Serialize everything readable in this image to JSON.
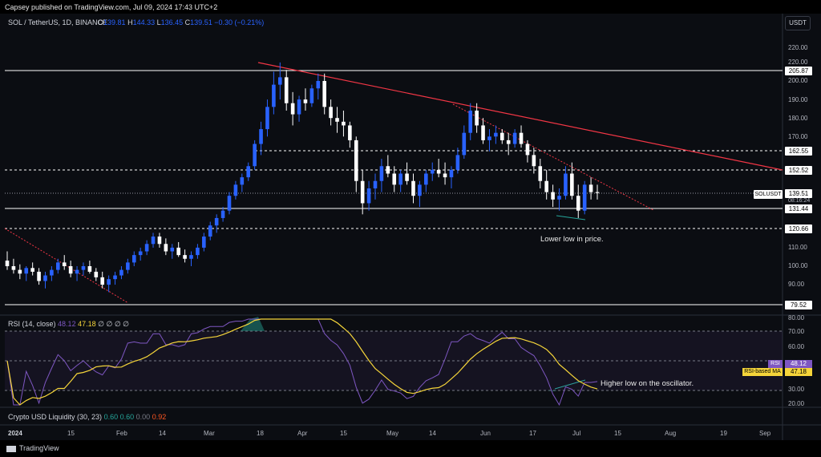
{
  "publish_line": "Capsey published on TradingView.com, Jul 09, 2024 17:43 UTC+2",
  "ticker": "SOL / TetherUS, 1D, BINANCE",
  "ohlc": {
    "o_label": "O",
    "o": "139.81",
    "h_label": "H",
    "h": "144.33",
    "l_label": "L",
    "l": "136.45",
    "c_label": "C",
    "c": "139.51",
    "change": "−0.30 (−0.21%)"
  },
  "currency": "USDT",
  "price_axis": [
    "220.00",
    "210.00",
    "200.00",
    "190.00",
    "180.00",
    "170.00",
    "160.00",
    "150.00",
    "140.00",
    "130.00",
    "120.00",
    "110.00",
    "100.00",
    "90.00",
    "80.00"
  ],
  "price_tags": [
    "205.87",
    "162.55",
    "152.52",
    "139.51",
    "131.44",
    "120.66",
    "79.52"
  ],
  "symbol_tag": "SOLUSDT",
  "bar_timer": "08:16:24",
  "notes": {
    "price": "Lower low in price.",
    "osc": "Higher low on the oscillator."
  },
  "rsi": {
    "name": "RSI (14, close)",
    "value": "48.12",
    "ma_value": "47.18",
    "extra": "∅ ∅ ∅ ∅",
    "axis": [
      "80.00",
      "70.00",
      "60.00",
      "50.00",
      "40.00",
      "30.00",
      "20.00"
    ],
    "tag_label": "RSI",
    "ma_tag_label": "RSI-based MA",
    "line_color": "#7e57c2",
    "ma_color": "#f5d53a"
  },
  "liquidity": {
    "name": "Crypto USD Liquidity (30, 23)",
    "v1": "0.60",
    "v2": "0.60",
    "v3": "0.00",
    "v4": "0.92"
  },
  "time_axis": [
    "2024",
    "15",
    "Feb",
    "14",
    "Mar",
    "18",
    "Apr",
    "15",
    "May",
    "14",
    "Jun",
    "17",
    "Jul",
    "15",
    "Aug",
    "19",
    "Sep"
  ],
  "footer_brand": "TradingView",
  "colors": {
    "up": "#2962ff",
    "down": "#ffffff",
    "trendline": "#f23645",
    "background": "#0b0d12"
  },
  "chart_data": {
    "type": "candlestick",
    "series": [
      {
        "name": "SOLUSDT",
        "values": [
          [
            103,
            108,
            98,
            100
          ],
          [
            100,
            104,
            96,
            98
          ],
          [
            98,
            101,
            93,
            96
          ],
          [
            96,
            100,
            92,
            99
          ],
          [
            99,
            102,
            95,
            97
          ],
          [
            97,
            99,
            90,
            92
          ],
          [
            92,
            97,
            88,
            95
          ],
          [
            95,
            100,
            92,
            98
          ],
          [
            98,
            104,
            96,
            102
          ],
          [
            102,
            106,
            98,
            100
          ],
          [
            100,
            103,
            94,
            96
          ],
          [
            96,
            100,
            92,
            98
          ],
          [
            98,
            102,
            95,
            100
          ],
          [
            100,
            103,
            96,
            97
          ],
          [
            97,
            99,
            92,
            94
          ],
          [
            94,
            97,
            88,
            90
          ],
          [
            90,
            95,
            86,
            93
          ],
          [
            93,
            97,
            90,
            95
          ],
          [
            95,
            100,
            93,
            98
          ],
          [
            98,
            104,
            96,
            102
          ],
          [
            102,
            108,
            100,
            106
          ],
          [
            106,
            110,
            103,
            108
          ],
          [
            108,
            114,
            106,
            112
          ],
          [
            112,
            118,
            110,
            116
          ],
          [
            116,
            118,
            110,
            112
          ],
          [
            112,
            115,
            106,
            108
          ],
          [
            108,
            112,
            104,
            110
          ],
          [
            110,
            113,
            105,
            106
          ],
          [
            106,
            109,
            102,
            104
          ],
          [
            104,
            108,
            100,
            106
          ],
          [
            106,
            112,
            104,
            110
          ],
          [
            110,
            118,
            108,
            116
          ],
          [
            116,
            124,
            114,
            122
          ],
          [
            122,
            128,
            118,
            126
          ],
          [
            126,
            132,
            124,
            130
          ],
          [
            130,
            140,
            128,
            138
          ],
          [
            138,
            146,
            136,
            144
          ],
          [
            144,
            150,
            140,
            148
          ],
          [
            148,
            156,
            146,
            154
          ],
          [
            154,
            168,
            152,
            166
          ],
          [
            166,
            178,
            160,
            174
          ],
          [
            174,
            190,
            170,
            186
          ],
          [
            186,
            205,
            182,
            198
          ],
          [
            198,
            210,
            190,
            202
          ],
          [
            202,
            206,
            184,
            188
          ],
          [
            188,
            194,
            176,
            182
          ],
          [
            182,
            192,
            178,
            190
          ],
          [
            190,
            196,
            184,
            188
          ],
          [
            188,
            198,
            186,
            196
          ],
          [
            196,
            204,
            190,
            200
          ],
          [
            200,
            204,
            182,
            186
          ],
          [
            186,
            190,
            176,
            180
          ],
          [
            180,
            186,
            172,
            178
          ],
          [
            178,
            184,
            170,
            176
          ],
          [
            176,
            178,
            164,
            168
          ],
          [
            168,
            170,
            140,
            146
          ],
          [
            146,
            152,
            128,
            134
          ],
          [
            134,
            146,
            130,
            142
          ],
          [
            142,
            150,
            136,
            146
          ],
          [
            146,
            158,
            140,
            154
          ],
          [
            154,
            160,
            148,
            150
          ],
          [
            150,
            154,
            140,
            144
          ],
          [
            144,
            152,
            140,
            150
          ],
          [
            150,
            156,
            144,
            146
          ],
          [
            146,
            150,
            134,
            138
          ],
          [
            138,
            146,
            132,
            144
          ],
          [
            144,
            152,
            140,
            150
          ],
          [
            150,
            156,
            146,
            152
          ],
          [
            152,
            158,
            148,
            150
          ],
          [
            150,
            156,
            144,
            148
          ],
          [
            148,
            154,
            142,
            152
          ],
          [
            152,
            164,
            150,
            160
          ],
          [
            160,
            176,
            158,
            172
          ],
          [
            172,
            188,
            168,
            184
          ],
          [
            184,
            188,
            172,
            176
          ],
          [
            176,
            180,
            166,
            168
          ],
          [
            168,
            174,
            162,
            170
          ],
          [
            170,
            176,
            166,
            172
          ],
          [
            172,
            174,
            166,
            168
          ],
          [
            168,
            172,
            160,
            166
          ],
          [
            166,
            174,
            164,
            172
          ],
          [
            172,
            176,
            164,
            166
          ],
          [
            166,
            168,
            156,
            160
          ],
          [
            160,
            164,
            150,
            154
          ],
          [
            154,
            158,
            142,
            146
          ],
          [
            146,
            152,
            136,
            140
          ],
          [
            140,
            144,
            132,
            136
          ],
          [
            136,
            142,
            130,
            138
          ],
          [
            138,
            154,
            136,
            150
          ],
          [
            150,
            156,
            136,
            138
          ],
          [
            138,
            144,
            126,
            130
          ],
          [
            130,
            146,
            128,
            144
          ],
          [
            144,
            148,
            136,
            140
          ],
          [
            140,
            144,
            136,
            139.51
          ]
        ]
      }
    ],
    "levels": [
      205.87,
      162.55,
      152.52,
      131.44,
      120.66,
      79.52
    ],
    "trendline": {
      "from_price": 210,
      "to_price": 153
    },
    "yrange": [
      75,
      225
    ]
  }
}
